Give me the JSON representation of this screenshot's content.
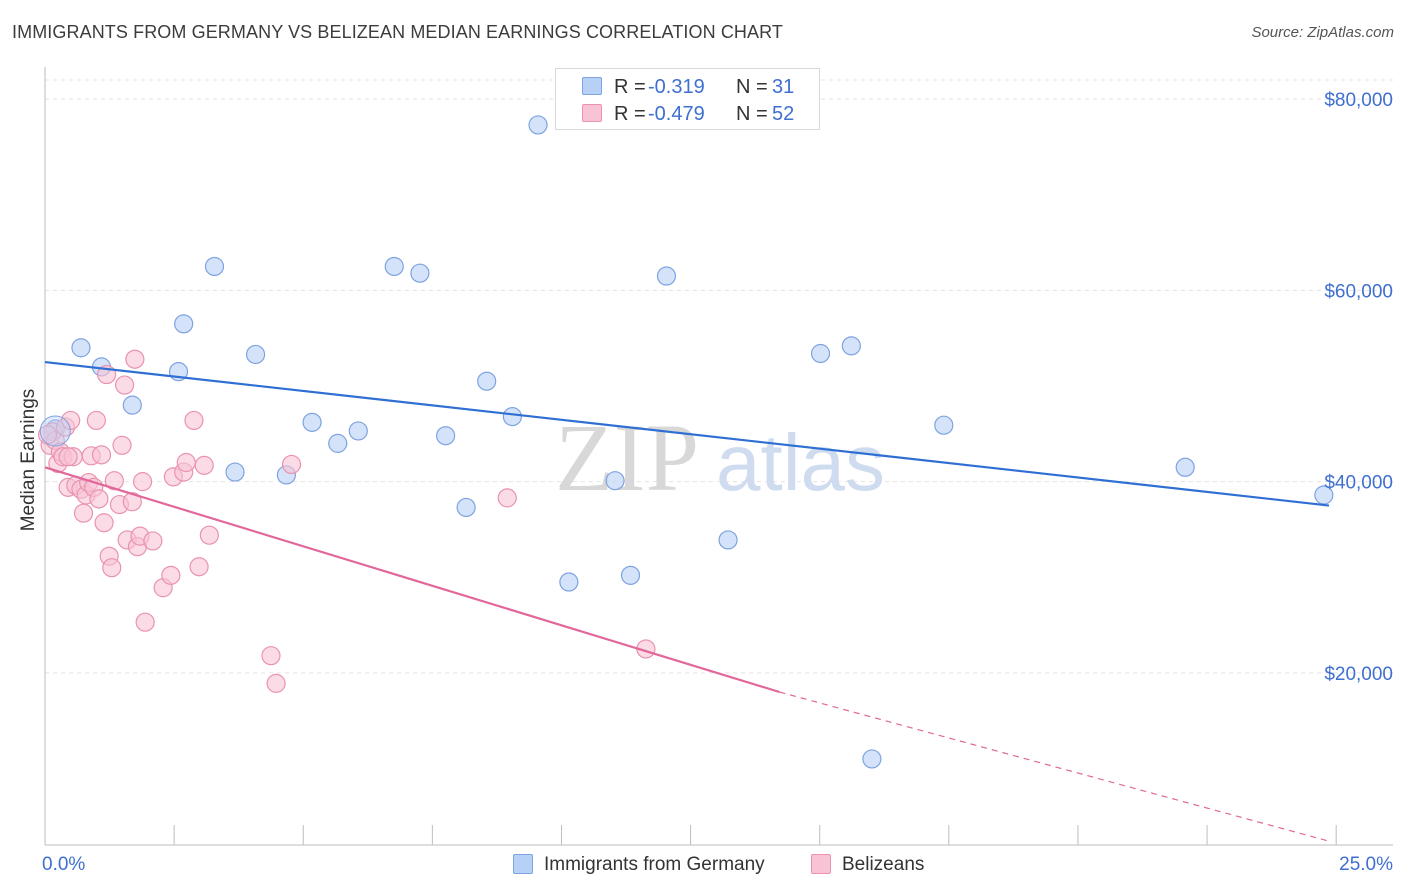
{
  "title": "IMMIGRANTS FROM GERMANY VS BELIZEAN MEDIAN EARNINGS CORRELATION CHART",
  "source": "Source: ZipAtlas.com",
  "watermark": {
    "zip": "ZIP",
    "atlas": "atlas"
  },
  "legend_top": [
    {
      "r_label": "R =",
      "r_value": "-0.319",
      "n_label": "N =",
      "n_value": "31"
    },
    {
      "r_label": "R =",
      "r_value": "-0.479",
      "n_label": "N =",
      "n_value": "52"
    }
  ],
  "legend_bottom": [
    {
      "label": "Immigrants from Germany"
    },
    {
      "label": "Belizeans"
    }
  ],
  "colors": {
    "blue_fill": "#b7d0f5",
    "blue_stroke": "#7ea3e0",
    "blue_line": "#2f6fd4",
    "pink_fill": "#f8c3d4",
    "pink_stroke": "#e993b0",
    "pink_line": "#e2679a",
    "axis_text": "#3f6fd0"
  },
  "chart_data": {
    "type": "scatter",
    "ylabel": "Median Earnings",
    "xlabel": "",
    "xlim": [
      0,
      25
    ],
    "ylim": [
      2000,
      82000
    ],
    "x_tick_labels": {
      "left": "0.0%",
      "right": "25.0%"
    },
    "y_ticks": [
      {
        "value": 80000,
        "label": "$80,000"
      },
      {
        "value": 60000,
        "label": "$60,000"
      },
      {
        "value": 40000,
        "label": "$40,000"
      },
      {
        "value": 20000,
        "label": "$20,000"
      }
    ],
    "grid": true,
    "series": [
      {
        "name": "Immigrants from Germany",
        "color": "blue",
        "points": [
          [
            0.2,
            45500
          ],
          [
            0.7,
            54000
          ],
          [
            1.1,
            52000
          ],
          [
            1.7,
            48000
          ],
          [
            2.6,
            51500
          ],
          [
            2.7,
            56500
          ],
          [
            3.3,
            62500
          ],
          [
            3.7,
            41000
          ],
          [
            4.1,
            53300
          ],
          [
            4.7,
            40700
          ],
          [
            5.2,
            46200
          ],
          [
            5.7,
            44000
          ],
          [
            6.1,
            45300
          ],
          [
            6.8,
            62500
          ],
          [
            7.3,
            61800
          ],
          [
            7.8,
            44800
          ],
          [
            8.2,
            37300
          ],
          [
            8.6,
            50500
          ],
          [
            9.1,
            46800
          ],
          [
            9.6,
            77300
          ],
          [
            10.2,
            29500
          ],
          [
            11.1,
            40100
          ],
          [
            11.4,
            30200
          ],
          [
            12.1,
            61500
          ],
          [
            13.3,
            33900
          ],
          [
            15.1,
            53400
          ],
          [
            15.7,
            54200
          ],
          [
            16.1,
            11000
          ],
          [
            17.5,
            45900
          ],
          [
            22.2,
            41500
          ],
          [
            24.9,
            38600
          ]
        ],
        "trend": {
          "x": [
            0,
            25
          ],
          "y": [
            52500,
            37500
          ],
          "style": "solid"
        }
      },
      {
        "name": "Belizeans",
        "color": "pink",
        "points": [
          [
            0.1,
            43800
          ],
          [
            0.15,
            45200
          ],
          [
            0.2,
            44300
          ],
          [
            0.25,
            41900
          ],
          [
            0.3,
            43100
          ],
          [
            0.35,
            42600
          ],
          [
            0.4,
            45700
          ],
          [
            0.45,
            39400
          ],
          [
            0.5,
            46400
          ],
          [
            0.55,
            42600
          ],
          [
            0.6,
            39600
          ],
          [
            0.7,
            39200
          ],
          [
            0.75,
            36700
          ],
          [
            0.8,
            38600
          ],
          [
            0.85,
            39900
          ],
          [
            0.9,
            42700
          ],
          [
            0.95,
            39400
          ],
          [
            1.0,
            46400
          ],
          [
            1.05,
            38200
          ],
          [
            1.1,
            42800
          ],
          [
            1.15,
            35700
          ],
          [
            1.2,
            51200
          ],
          [
            1.25,
            32200
          ],
          [
            1.3,
            31000
          ],
          [
            1.35,
            40100
          ],
          [
            1.45,
            37600
          ],
          [
            1.5,
            43800
          ],
          [
            1.55,
            50100
          ],
          [
            1.6,
            33900
          ],
          [
            1.7,
            37900
          ],
          [
            1.75,
            52800
          ],
          [
            1.8,
            33200
          ],
          [
            1.85,
            34300
          ],
          [
            1.9,
            40000
          ],
          [
            1.95,
            25300
          ],
          [
            2.1,
            33800
          ],
          [
            2.3,
            28900
          ],
          [
            2.45,
            30200
          ],
          [
            2.5,
            40500
          ],
          [
            2.7,
            41000
          ],
          [
            2.75,
            42000
          ],
          [
            2.9,
            46400
          ],
          [
            3.0,
            31100
          ],
          [
            3.1,
            41700
          ],
          [
            3.2,
            34400
          ],
          [
            4.4,
            21800
          ],
          [
            4.5,
            18900
          ],
          [
            4.8,
            41800
          ],
          [
            9.0,
            38300
          ],
          [
            11.7,
            22500
          ],
          [
            0.05,
            44900
          ],
          [
            0.45,
            42600
          ]
        ],
        "trend": {
          "x": [
            0,
            14.3
          ],
          "y": [
            41500,
            18000
          ],
          "style": "solid"
        },
        "trend_extension": {
          "x": [
            14.3,
            25
          ],
          "y": [
            18000,
            2400
          ],
          "style": "dashed"
        }
      }
    ]
  }
}
